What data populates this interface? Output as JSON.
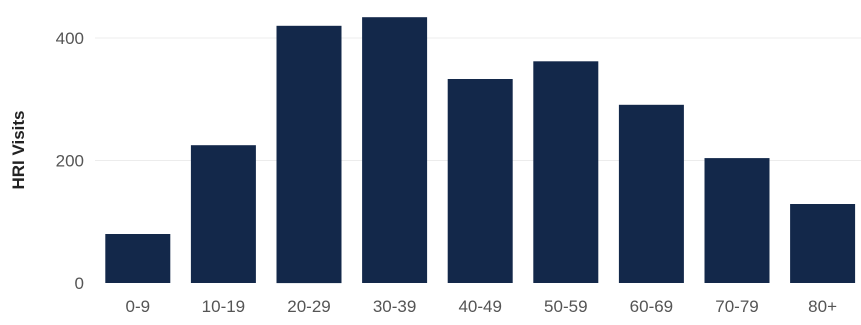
{
  "chart_data": {
    "type": "bar",
    "categories": [
      "0-9",
      "10-19",
      "20-29",
      "30-39",
      "40-49",
      "50-59",
      "60-69",
      "70-79",
      "80+"
    ],
    "values": [
      80,
      225,
      420,
      434,
      333,
      362,
      291,
      204,
      129
    ],
    "title": "",
    "xlabel": "",
    "ylabel": "HRI Visits",
    "ylim": [
      0,
      450
    ],
    "yticks": [
      0,
      200,
      400
    ],
    "grid": true,
    "legend": "none",
    "bar_color": "#13284a",
    "grid_color": "#ececec"
  }
}
